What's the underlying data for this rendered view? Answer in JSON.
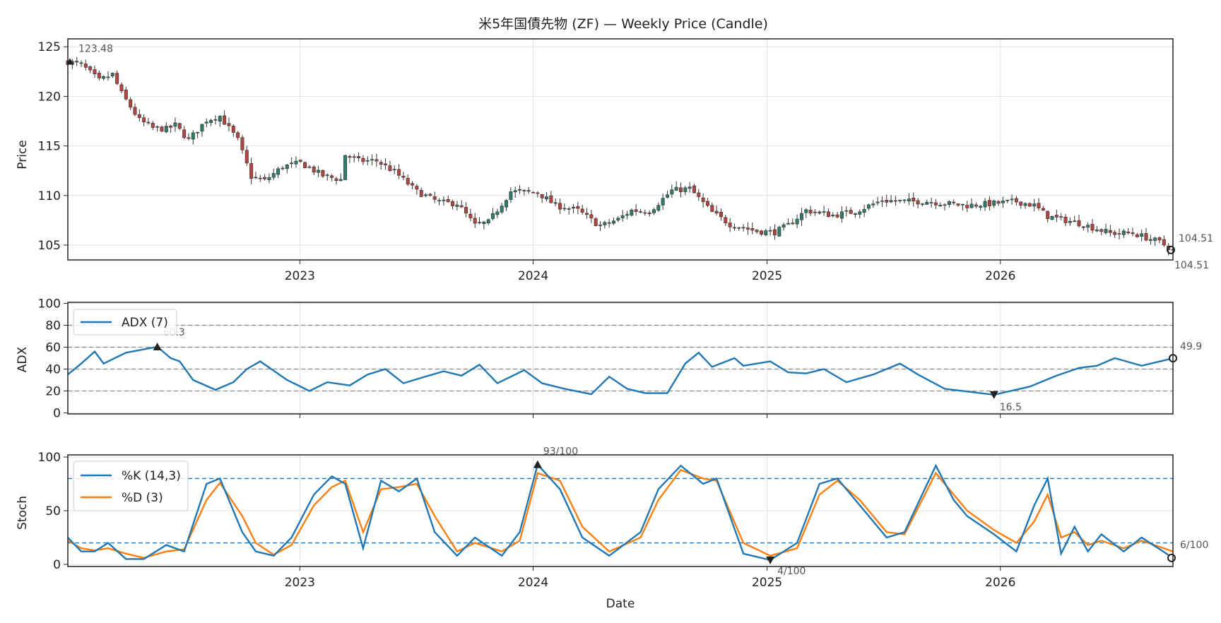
{
  "title": "米5年国債先物 (ZF) — Weekly Price (Candle)",
  "x_axis": {
    "label": "Date",
    "ticks": [
      "2023",
      "2024",
      "2025",
      "2026"
    ]
  },
  "colors": {
    "up": "#2e7d6b",
    "down": "#b5443f",
    "adx": "#1f77b4",
    "k": "#1f77b4",
    "d": "#ff7f0e",
    "grid": "#e2e2e2",
    "ref_gray": "#888888",
    "ref_blue": "#1f77b4"
  },
  "panels": {
    "price": {
      "ylabel": "Price",
      "ylim": [
        103.5,
        125.8
      ],
      "yticks": [
        "105",
        "110",
        "115",
        "120",
        "125"
      ],
      "annotations": {
        "first": "123.48",
        "last_close": "104.51",
        "last_marker": "104.51"
      }
    },
    "adx": {
      "ylabel": "ADX",
      "ylim": [
        -1,
        101
      ],
      "yticks": [
        "0",
        "20",
        "40",
        "60",
        "80",
        "100"
      ],
      "ref_levels": [
        20,
        40,
        60,
        80
      ],
      "legend": "ADX (7)",
      "annotations": {
        "max": "60.3",
        "min": "16.5",
        "last": "49.9"
      }
    },
    "stoch": {
      "ylabel": "Stoch",
      "ylim": [
        -2,
        102
      ],
      "yticks": [
        "0",
        "50",
        "100"
      ],
      "ref_levels": [
        20,
        80
      ],
      "legend_k": "%K (14,3)",
      "legend_d": "%D (3)",
      "annotations": {
        "max": "93/100",
        "min": "4/100",
        "last": "6/100"
      }
    }
  },
  "chart_data": [
    {
      "type": "candlestick",
      "title": "米5年国債先物 (ZF) — Weekly Price (Candle)",
      "ylabel": "Price",
      "xlabel": "",
      "ylim": [
        103.5,
        125.8
      ],
      "x_start": "2022-01-03",
      "x_end": "2026-09-28",
      "interval": "weekly",
      "close_keypoints": [
        [
          "2022-01-03",
          123.5
        ],
        [
          "2022-01-24",
          123.2
        ],
        [
          "2022-02-21",
          121.6
        ],
        [
          "2022-03-14",
          122.2
        ],
        [
          "2022-03-28",
          120.3
        ],
        [
          "2022-04-25",
          117.6
        ],
        [
          "2022-05-16",
          116.8
        ],
        [
          "2022-06-06",
          116.7
        ],
        [
          "2022-06-20",
          117.1
        ],
        [
          "2022-07-11",
          115.6
        ],
        [
          "2022-08-08",
          117.6
        ],
        [
          "2022-08-29",
          118.0
        ],
        [
          "2022-09-26",
          115.6
        ],
        [
          "2022-10-17",
          111.9
        ],
        [
          "2022-11-07",
          111.5
        ],
        [
          "2022-12-05",
          112.9
        ],
        [
          "2023-01-02",
          113.3
        ],
        [
          "2023-02-06",
          112.0
        ],
        [
          "2023-03-06",
          111.6
        ],
        [
          "2023-03-13",
          114.1
        ],
        [
          "2023-04-03",
          113.5
        ],
        [
          "2023-05-01",
          113.5
        ],
        [
          "2023-05-29",
          112.4
        ],
        [
          "2023-07-03",
          110.4
        ],
        [
          "2023-08-07",
          109.3
        ],
        [
          "2023-09-04",
          109.2
        ],
        [
          "2023-10-02",
          107.0
        ],
        [
          "2023-10-23",
          107.3
        ],
        [
          "2023-11-27",
          110.4
        ],
        [
          "2024-01-08",
          110.3
        ],
        [
          "2024-02-05",
          109.0
        ],
        [
          "2024-03-11",
          108.5
        ],
        [
          "2024-04-15",
          106.9
        ],
        [
          "2024-05-13",
          107.6
        ],
        [
          "2024-06-03",
          108.5
        ],
        [
          "2024-07-01",
          108.4
        ],
        [
          "2024-08-05",
          110.5
        ],
        [
          "2024-09-02",
          110.7
        ],
        [
          "2024-10-07",
          108.3
        ],
        [
          "2024-11-04",
          107.1
        ],
        [
          "2024-12-16",
          106.4
        ],
        [
          "2025-01-13",
          106.3
        ],
        [
          "2025-02-03",
          107.0
        ],
        [
          "2025-03-03",
          108.5
        ],
        [
          "2025-04-14",
          108.0
        ],
        [
          "2025-05-19",
          108.4
        ],
        [
          "2025-06-30",
          109.5
        ],
        [
          "2025-08-04",
          109.4
        ],
        [
          "2025-09-08",
          109.4
        ],
        [
          "2025-10-06",
          109.2
        ],
        [
          "2025-11-10",
          109.0
        ],
        [
          "2025-12-22",
          109.2
        ],
        [
          "2026-01-26",
          109.4
        ],
        [
          "2026-02-23",
          109.0
        ],
        [
          "2026-03-16",
          107.9
        ],
        [
          "2026-05-04",
          107.2
        ],
        [
          "2026-06-22",
          106.2
        ],
        [
          "2026-07-27",
          106.2
        ],
        [
          "2026-09-07",
          105.3
        ],
        [
          "2026-09-28",
          104.51
        ]
      ]
    },
    {
      "type": "line",
      "ylabel": "ADX",
      "ylim": [
        -1,
        101
      ],
      "series": [
        {
          "name": "ADX (7)",
          "points": [
            [
              "2022-01-03",
              35
            ],
            [
              "2022-01-24",
              45
            ],
            [
              "2022-02-14",
              56
            ],
            [
              "2022-02-28",
              45
            ],
            [
              "2022-04-04",
              55
            ],
            [
              "2022-05-23",
              60.3
            ],
            [
              "2022-06-13",
              50
            ],
            [
              "2022-06-27",
              47
            ],
            [
              "2022-07-18",
              30
            ],
            [
              "2022-08-22",
              21
            ],
            [
              "2022-09-19",
              28
            ],
            [
              "2022-10-10",
              40
            ],
            [
              "2022-10-31",
              47
            ],
            [
              "2022-12-12",
              30
            ],
            [
              "2023-01-16",
              20
            ],
            [
              "2023-02-13",
              28
            ],
            [
              "2023-03-20",
              25
            ],
            [
              "2023-04-17",
              35
            ],
            [
              "2023-05-15",
              40
            ],
            [
              "2023-06-12",
              27
            ],
            [
              "2023-07-10",
              32
            ],
            [
              "2023-08-14",
              38
            ],
            [
              "2023-09-11",
              34
            ],
            [
              "2023-10-09",
              44
            ],
            [
              "2023-11-06",
              27
            ],
            [
              "2023-12-18",
              39
            ],
            [
              "2024-01-15",
              27
            ],
            [
              "2024-02-19",
              22
            ],
            [
              "2024-04-01",
              17
            ],
            [
              "2024-04-29",
              33
            ],
            [
              "2024-05-27",
              22
            ],
            [
              "2024-06-24",
              18
            ],
            [
              "2024-07-29",
              18
            ],
            [
              "2024-08-26",
              45
            ],
            [
              "2024-09-16",
              55
            ],
            [
              "2024-10-07",
              42
            ],
            [
              "2024-11-11",
              50
            ],
            [
              "2024-11-25",
              43
            ],
            [
              "2025-01-06",
              47
            ],
            [
              "2025-02-03",
              37
            ],
            [
              "2025-03-03",
              36
            ],
            [
              "2025-03-31",
              40
            ],
            [
              "2025-05-05",
              28
            ],
            [
              "2025-06-16",
              35
            ],
            [
              "2025-07-28",
              45
            ],
            [
              "2025-08-25",
              35
            ],
            [
              "2025-10-06",
              22
            ],
            [
              "2025-12-22",
              16.5
            ],
            [
              "2026-02-16",
              24
            ],
            [
              "2026-03-30",
              34
            ],
            [
              "2026-05-04",
              41
            ],
            [
              "2026-06-01",
              43
            ],
            [
              "2026-06-29",
              50
            ],
            [
              "2026-08-10",
              43
            ],
            [
              "2026-09-28",
              49.9
            ]
          ]
        }
      ]
    },
    {
      "type": "line",
      "ylabel": "Stoch",
      "ylim": [
        -2,
        102
      ],
      "series": [
        {
          "name": "%K (14,3)",
          "points": [
            [
              "2022-01-03",
              25
            ],
            [
              "2022-01-24",
              12
            ],
            [
              "2022-02-14",
              12
            ],
            [
              "2022-03-07",
              20
            ],
            [
              "2022-04-04",
              5
            ],
            [
              "2022-05-02",
              5
            ],
            [
              "2022-06-06",
              18
            ],
            [
              "2022-07-04",
              12
            ],
            [
              "2022-08-08",
              75
            ],
            [
              "2022-08-29",
              80
            ],
            [
              "2022-10-03",
              30
            ],
            [
              "2022-10-24",
              12
            ],
            [
              "2022-11-21",
              8
            ],
            [
              "2022-12-19",
              25
            ],
            [
              "2023-01-23",
              65
            ],
            [
              "2023-02-20",
              82
            ],
            [
              "2023-03-13",
              75
            ],
            [
              "2023-04-10",
              15
            ],
            [
              "2023-05-08",
              78
            ],
            [
              "2023-06-05",
              68
            ],
            [
              "2023-07-03",
              80
            ],
            [
              "2023-07-31",
              30
            ],
            [
              "2023-09-04",
              8
            ],
            [
              "2023-10-02",
              25
            ],
            [
              "2023-11-13",
              8
            ],
            [
              "2023-12-11",
              30
            ],
            [
              "2024-01-08",
              93
            ],
            [
              "2024-02-12",
              70
            ],
            [
              "2024-03-18",
              25
            ],
            [
              "2024-04-29",
              8
            ],
            [
              "2024-06-17",
              30
            ],
            [
              "2024-07-15",
              70
            ],
            [
              "2024-08-19",
              92
            ],
            [
              "2024-09-23",
              75
            ],
            [
              "2024-10-14",
              80
            ],
            [
              "2024-11-25",
              10
            ],
            [
              "2025-01-06",
              4
            ],
            [
              "2025-02-17",
              20
            ],
            [
              "2025-03-24",
              75
            ],
            [
              "2025-04-21",
              80
            ],
            [
              "2025-05-26",
              55
            ],
            [
              "2025-07-07",
              25
            ],
            [
              "2025-08-04",
              30
            ],
            [
              "2025-09-22",
              92
            ],
            [
              "2025-10-20",
              60
            ],
            [
              "2025-11-10",
              45
            ],
            [
              "2025-12-22",
              28
            ],
            [
              "2026-01-26",
              12
            ],
            [
              "2026-02-23",
              55
            ],
            [
              "2026-03-16",
              80
            ],
            [
              "2026-04-06",
              10
            ],
            [
              "2026-04-27",
              35
            ],
            [
              "2026-05-18",
              12
            ],
            [
              "2026-06-08",
              28
            ],
            [
              "2026-07-13",
              12
            ],
            [
              "2026-08-10",
              25
            ],
            [
              "2026-09-28",
              6
            ]
          ]
        },
        {
          "name": "%D (3)",
          "points": [
            [
              "2022-01-03",
              22
            ],
            [
              "2022-01-24",
              15
            ],
            [
              "2022-02-14",
              13
            ],
            [
              "2022-03-07",
              15
            ],
            [
              "2022-04-04",
              10
            ],
            [
              "2022-05-02",
              6
            ],
            [
              "2022-06-06",
              12
            ],
            [
              "2022-07-04",
              14
            ],
            [
              "2022-08-08",
              60
            ],
            [
              "2022-08-29",
              76
            ],
            [
              "2022-10-03",
              45
            ],
            [
              "2022-10-24",
              20
            ],
            [
              "2022-11-21",
              9
            ],
            [
              "2022-12-19",
              18
            ],
            [
              "2023-01-23",
              55
            ],
            [
              "2023-02-20",
              72
            ],
            [
              "2023-03-13",
              78
            ],
            [
              "2023-04-10",
              30
            ],
            [
              "2023-05-08",
              70
            ],
            [
              "2023-06-05",
              72
            ],
            [
              "2023-07-03",
              75
            ],
            [
              "2023-07-31",
              45
            ],
            [
              "2023-09-04",
              12
            ],
            [
              "2023-10-02",
              20
            ],
            [
              "2023-11-13",
              12
            ],
            [
              "2023-12-11",
              22
            ],
            [
              "2024-01-08",
              85
            ],
            [
              "2024-02-12",
              78
            ],
            [
              "2024-03-18",
              35
            ],
            [
              "2024-04-29",
              12
            ],
            [
              "2024-06-17",
              25
            ],
            [
              "2024-07-15",
              60
            ],
            [
              "2024-08-19",
              88
            ],
            [
              "2024-09-23",
              80
            ],
            [
              "2024-10-14",
              78
            ],
            [
              "2024-11-25",
              20
            ],
            [
              "2025-01-06",
              8
            ],
            [
              "2025-02-17",
              15
            ],
            [
              "2025-03-24",
              65
            ],
            [
              "2025-04-21",
              78
            ],
            [
              "2025-05-26",
              60
            ],
            [
              "2025-07-07",
              30
            ],
            [
              "2025-08-04",
              28
            ],
            [
              "2025-09-22",
              85
            ],
            [
              "2025-10-20",
              65
            ],
            [
              "2025-11-10",
              50
            ],
            [
              "2025-12-22",
              32
            ],
            [
              "2026-01-26",
              20
            ],
            [
              "2026-02-23",
              40
            ],
            [
              "2026-03-16",
              65
            ],
            [
              "2026-04-06",
              25
            ],
            [
              "2026-04-27",
              30
            ],
            [
              "2026-05-18",
              18
            ],
            [
              "2026-06-08",
              22
            ],
            [
              "2026-07-13",
              15
            ],
            [
              "2026-08-10",
              22
            ],
            [
              "2026-09-28",
              12
            ]
          ]
        }
      ]
    }
  ]
}
